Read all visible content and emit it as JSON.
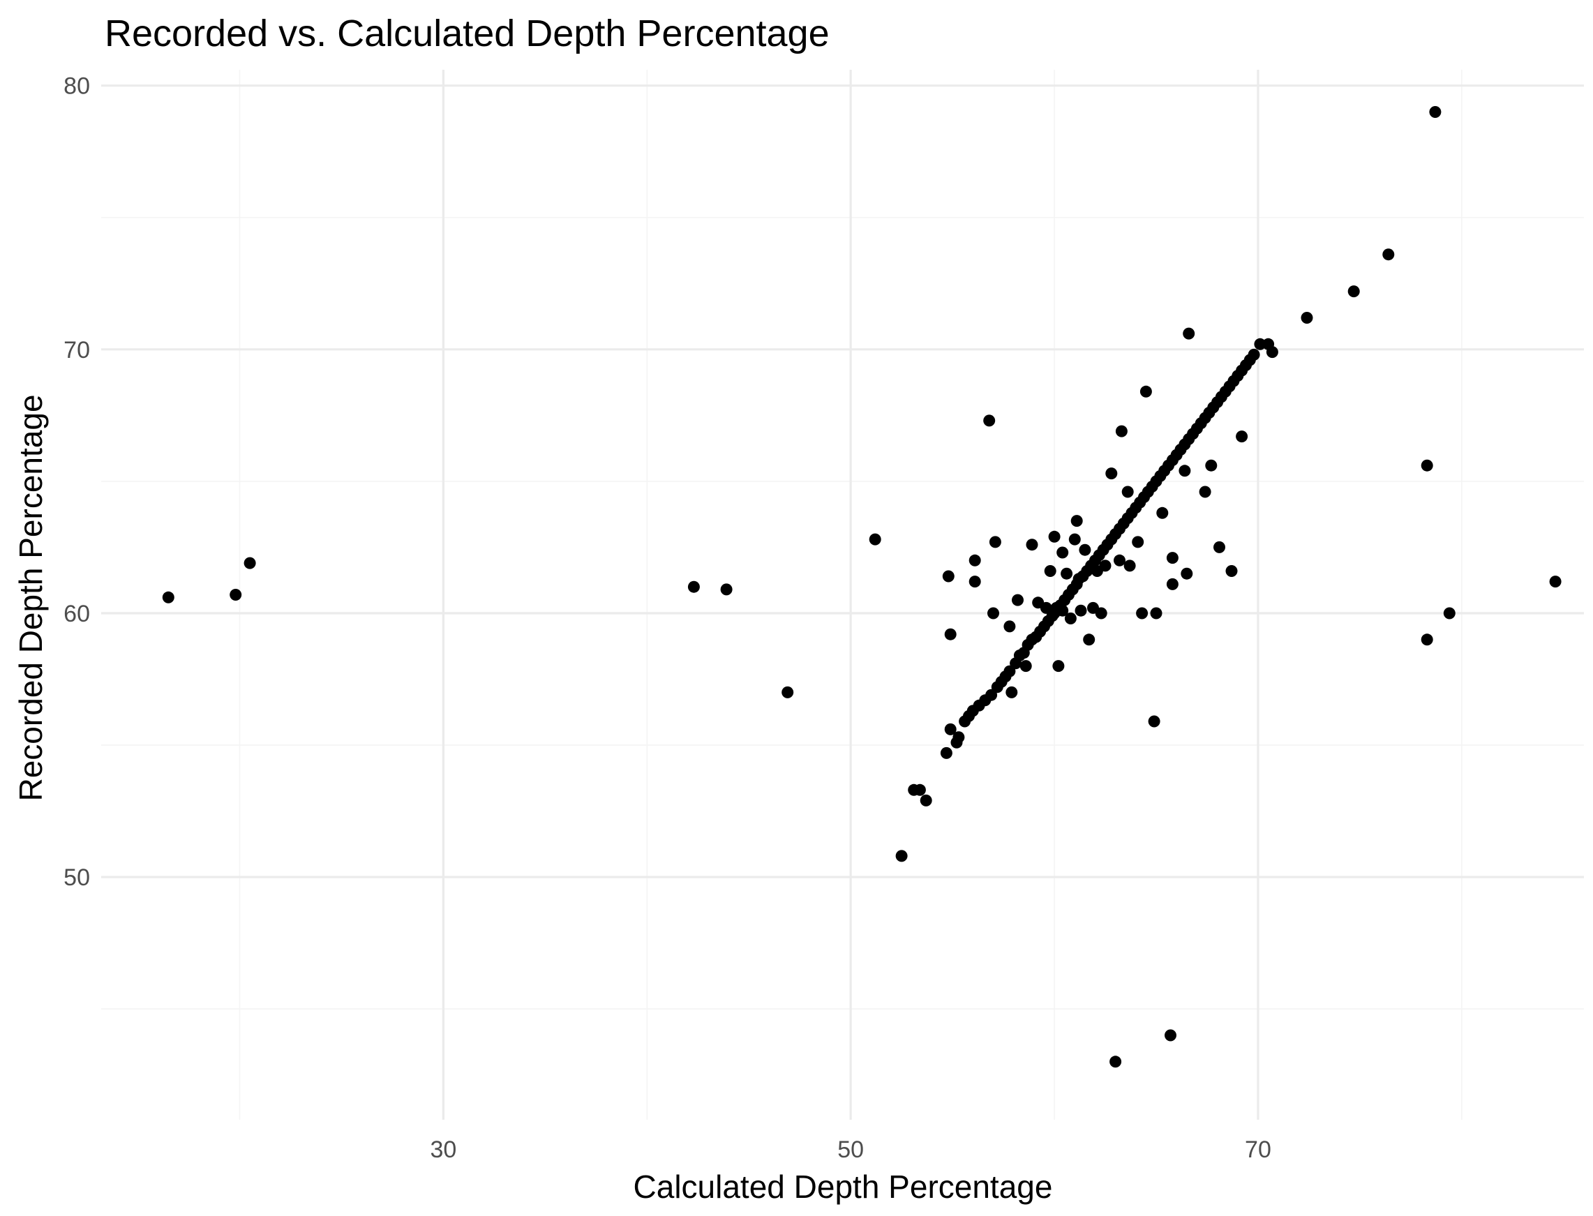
{
  "chart_data": {
    "type": "scatter",
    "title": "Recorded vs. Calculated Depth Percentage",
    "xlabel": "Calculated Depth Percentage",
    "ylabel": "Recorded Depth Percentage",
    "xlim": [
      13.2,
      86.0
    ],
    "ylim": [
      40.8,
      80.6
    ],
    "x_ticks": [
      30,
      50,
      70
    ],
    "x_tick_labels": [
      "30",
      "50",
      "70"
    ],
    "y_ticks": [
      50,
      60,
      70,
      80
    ],
    "y_tick_labels": [
      "50",
      "60",
      "70",
      "80"
    ],
    "x_minor": [
      20,
      40,
      60,
      80
    ],
    "y_minor": [
      45,
      55,
      65,
      75
    ],
    "grid": true,
    "point_color": "#000000",
    "points": [
      [
        16.5,
        60.6
      ],
      [
        19.8,
        60.7
      ],
      [
        20.5,
        61.9
      ],
      [
        42.3,
        61.0
      ],
      [
        43.9,
        60.9
      ],
      [
        46.9,
        57.0
      ],
      [
        51.2,
        62.8
      ],
      [
        52.5,
        50.8
      ],
      [
        53.1,
        53.3
      ],
      [
        53.4,
        53.3
      ],
      [
        53.7,
        52.9
      ],
      [
        54.7,
        54.7
      ],
      [
        54.8,
        61.4
      ],
      [
        54.9,
        59.2
      ],
      [
        54.9,
        55.6
      ],
      [
        55.2,
        55.1
      ],
      [
        55.3,
        55.3
      ],
      [
        55.6,
        55.9
      ],
      [
        55.8,
        56.1
      ],
      [
        56.0,
        56.3
      ],
      [
        56.1,
        62.0
      ],
      [
        56.1,
        61.2
      ],
      [
        56.3,
        56.5
      ],
      [
        56.6,
        56.7
      ],
      [
        56.8,
        67.3
      ],
      [
        56.9,
        56.9
      ],
      [
        57.0,
        60.0
      ],
      [
        57.1,
        62.7
      ],
      [
        57.2,
        57.2
      ],
      [
        57.4,
        57.4
      ],
      [
        57.6,
        57.6
      ],
      [
        57.8,
        57.8
      ],
      [
        57.8,
        59.5
      ],
      [
        57.9,
        57.0
      ],
      [
        58.1,
        58.1
      ],
      [
        58.2,
        60.5
      ],
      [
        58.3,
        58.4
      ],
      [
        58.5,
        58.5
      ],
      [
        58.6,
        58.0
      ],
      [
        58.7,
        58.8
      ],
      [
        58.9,
        59.0
      ],
      [
        58.9,
        62.6
      ],
      [
        59.1,
        59.1
      ],
      [
        59.2,
        60.4
      ],
      [
        59.3,
        59.3
      ],
      [
        59.5,
        59.5
      ],
      [
        59.6,
        60.2
      ],
      [
        59.7,
        59.7
      ],
      [
        59.8,
        61.6
      ],
      [
        59.9,
        59.9
      ],
      [
        60.0,
        62.9
      ],
      [
        60.0,
        60.0
      ],
      [
        60.1,
        60.2
      ],
      [
        60.2,
        58.0
      ],
      [
        60.3,
        60.3
      ],
      [
        60.4,
        62.3
      ],
      [
        60.4,
        60.1
      ],
      [
        60.5,
        60.5
      ],
      [
        60.6,
        61.5
      ],
      [
        60.7,
        60.7
      ],
      [
        60.8,
        59.8
      ],
      [
        60.9,
        60.9
      ],
      [
        61.0,
        62.8
      ],
      [
        61.1,
        61.1
      ],
      [
        61.1,
        63.5
      ],
      [
        61.2,
        61.3
      ],
      [
        61.3,
        60.1
      ],
      [
        61.4,
        61.4
      ],
      [
        61.5,
        62.4
      ],
      [
        61.6,
        61.6
      ],
      [
        61.7,
        59.0
      ],
      [
        61.8,
        61.8
      ],
      [
        61.9,
        60.2
      ],
      [
        62.0,
        62.0
      ],
      [
        62.1,
        61.6
      ],
      [
        62.2,
        62.2
      ],
      [
        62.3,
        60.0
      ],
      [
        62.4,
        62.4
      ],
      [
        62.5,
        61.8
      ],
      [
        62.6,
        62.6
      ],
      [
        62.8,
        62.8
      ],
      [
        62.8,
        65.3
      ],
      [
        63.0,
        63.0
      ],
      [
        63.0,
        43.0
      ],
      [
        63.2,
        63.2
      ],
      [
        63.2,
        62.0
      ],
      [
        63.3,
        66.9
      ],
      [
        63.4,
        63.4
      ],
      [
        63.6,
        63.6
      ],
      [
        63.6,
        64.6
      ],
      [
        63.7,
        61.8
      ],
      [
        63.8,
        63.8
      ],
      [
        64.0,
        64.0
      ],
      [
        64.1,
        62.7
      ],
      [
        64.2,
        64.2
      ],
      [
        64.3,
        60.0
      ],
      [
        64.4,
        64.4
      ],
      [
        64.5,
        68.4
      ],
      [
        64.6,
        64.6
      ],
      [
        64.8,
        64.8
      ],
      [
        64.9,
        55.9
      ],
      [
        65.0,
        60.0
      ],
      [
        65.0,
        65.0
      ],
      [
        65.2,
        65.2
      ],
      [
        65.3,
        63.8
      ],
      [
        65.4,
        65.4
      ],
      [
        65.6,
        65.6
      ],
      [
        65.7,
        44.0
      ],
      [
        65.8,
        62.1
      ],
      [
        65.8,
        61.1
      ],
      [
        65.8,
        65.8
      ],
      [
        66.0,
        66.0
      ],
      [
        66.2,
        66.2
      ],
      [
        66.4,
        65.4
      ],
      [
        66.4,
        66.4
      ],
      [
        66.5,
        61.5
      ],
      [
        66.6,
        70.6
      ],
      [
        66.6,
        66.6
      ],
      [
        66.8,
        66.8
      ],
      [
        67.0,
        67.0
      ],
      [
        67.2,
        67.2
      ],
      [
        67.4,
        64.6
      ],
      [
        67.4,
        67.4
      ],
      [
        67.6,
        67.6
      ],
      [
        67.7,
        65.6
      ],
      [
        67.8,
        67.8
      ],
      [
        68.0,
        68.0
      ],
      [
        68.1,
        62.5
      ],
      [
        68.2,
        68.2
      ],
      [
        68.4,
        68.4
      ],
      [
        68.6,
        68.6
      ],
      [
        68.7,
        61.6
      ],
      [
        68.8,
        68.8
      ],
      [
        69.0,
        69.0
      ],
      [
        69.2,
        66.7
      ],
      [
        69.2,
        69.2
      ],
      [
        69.4,
        69.4
      ],
      [
        69.6,
        69.6
      ],
      [
        69.8,
        69.8
      ],
      [
        70.1,
        70.2
      ],
      [
        70.5,
        70.2
      ],
      [
        70.7,
        69.9
      ],
      [
        72.4,
        71.2
      ],
      [
        74.7,
        72.2
      ],
      [
        76.4,
        73.6
      ],
      [
        78.3,
        59.0
      ],
      [
        78.3,
        65.6
      ],
      [
        78.7,
        79.0
      ],
      [
        79.4,
        60.0
      ],
      [
        84.6,
        61.2
      ]
    ]
  }
}
